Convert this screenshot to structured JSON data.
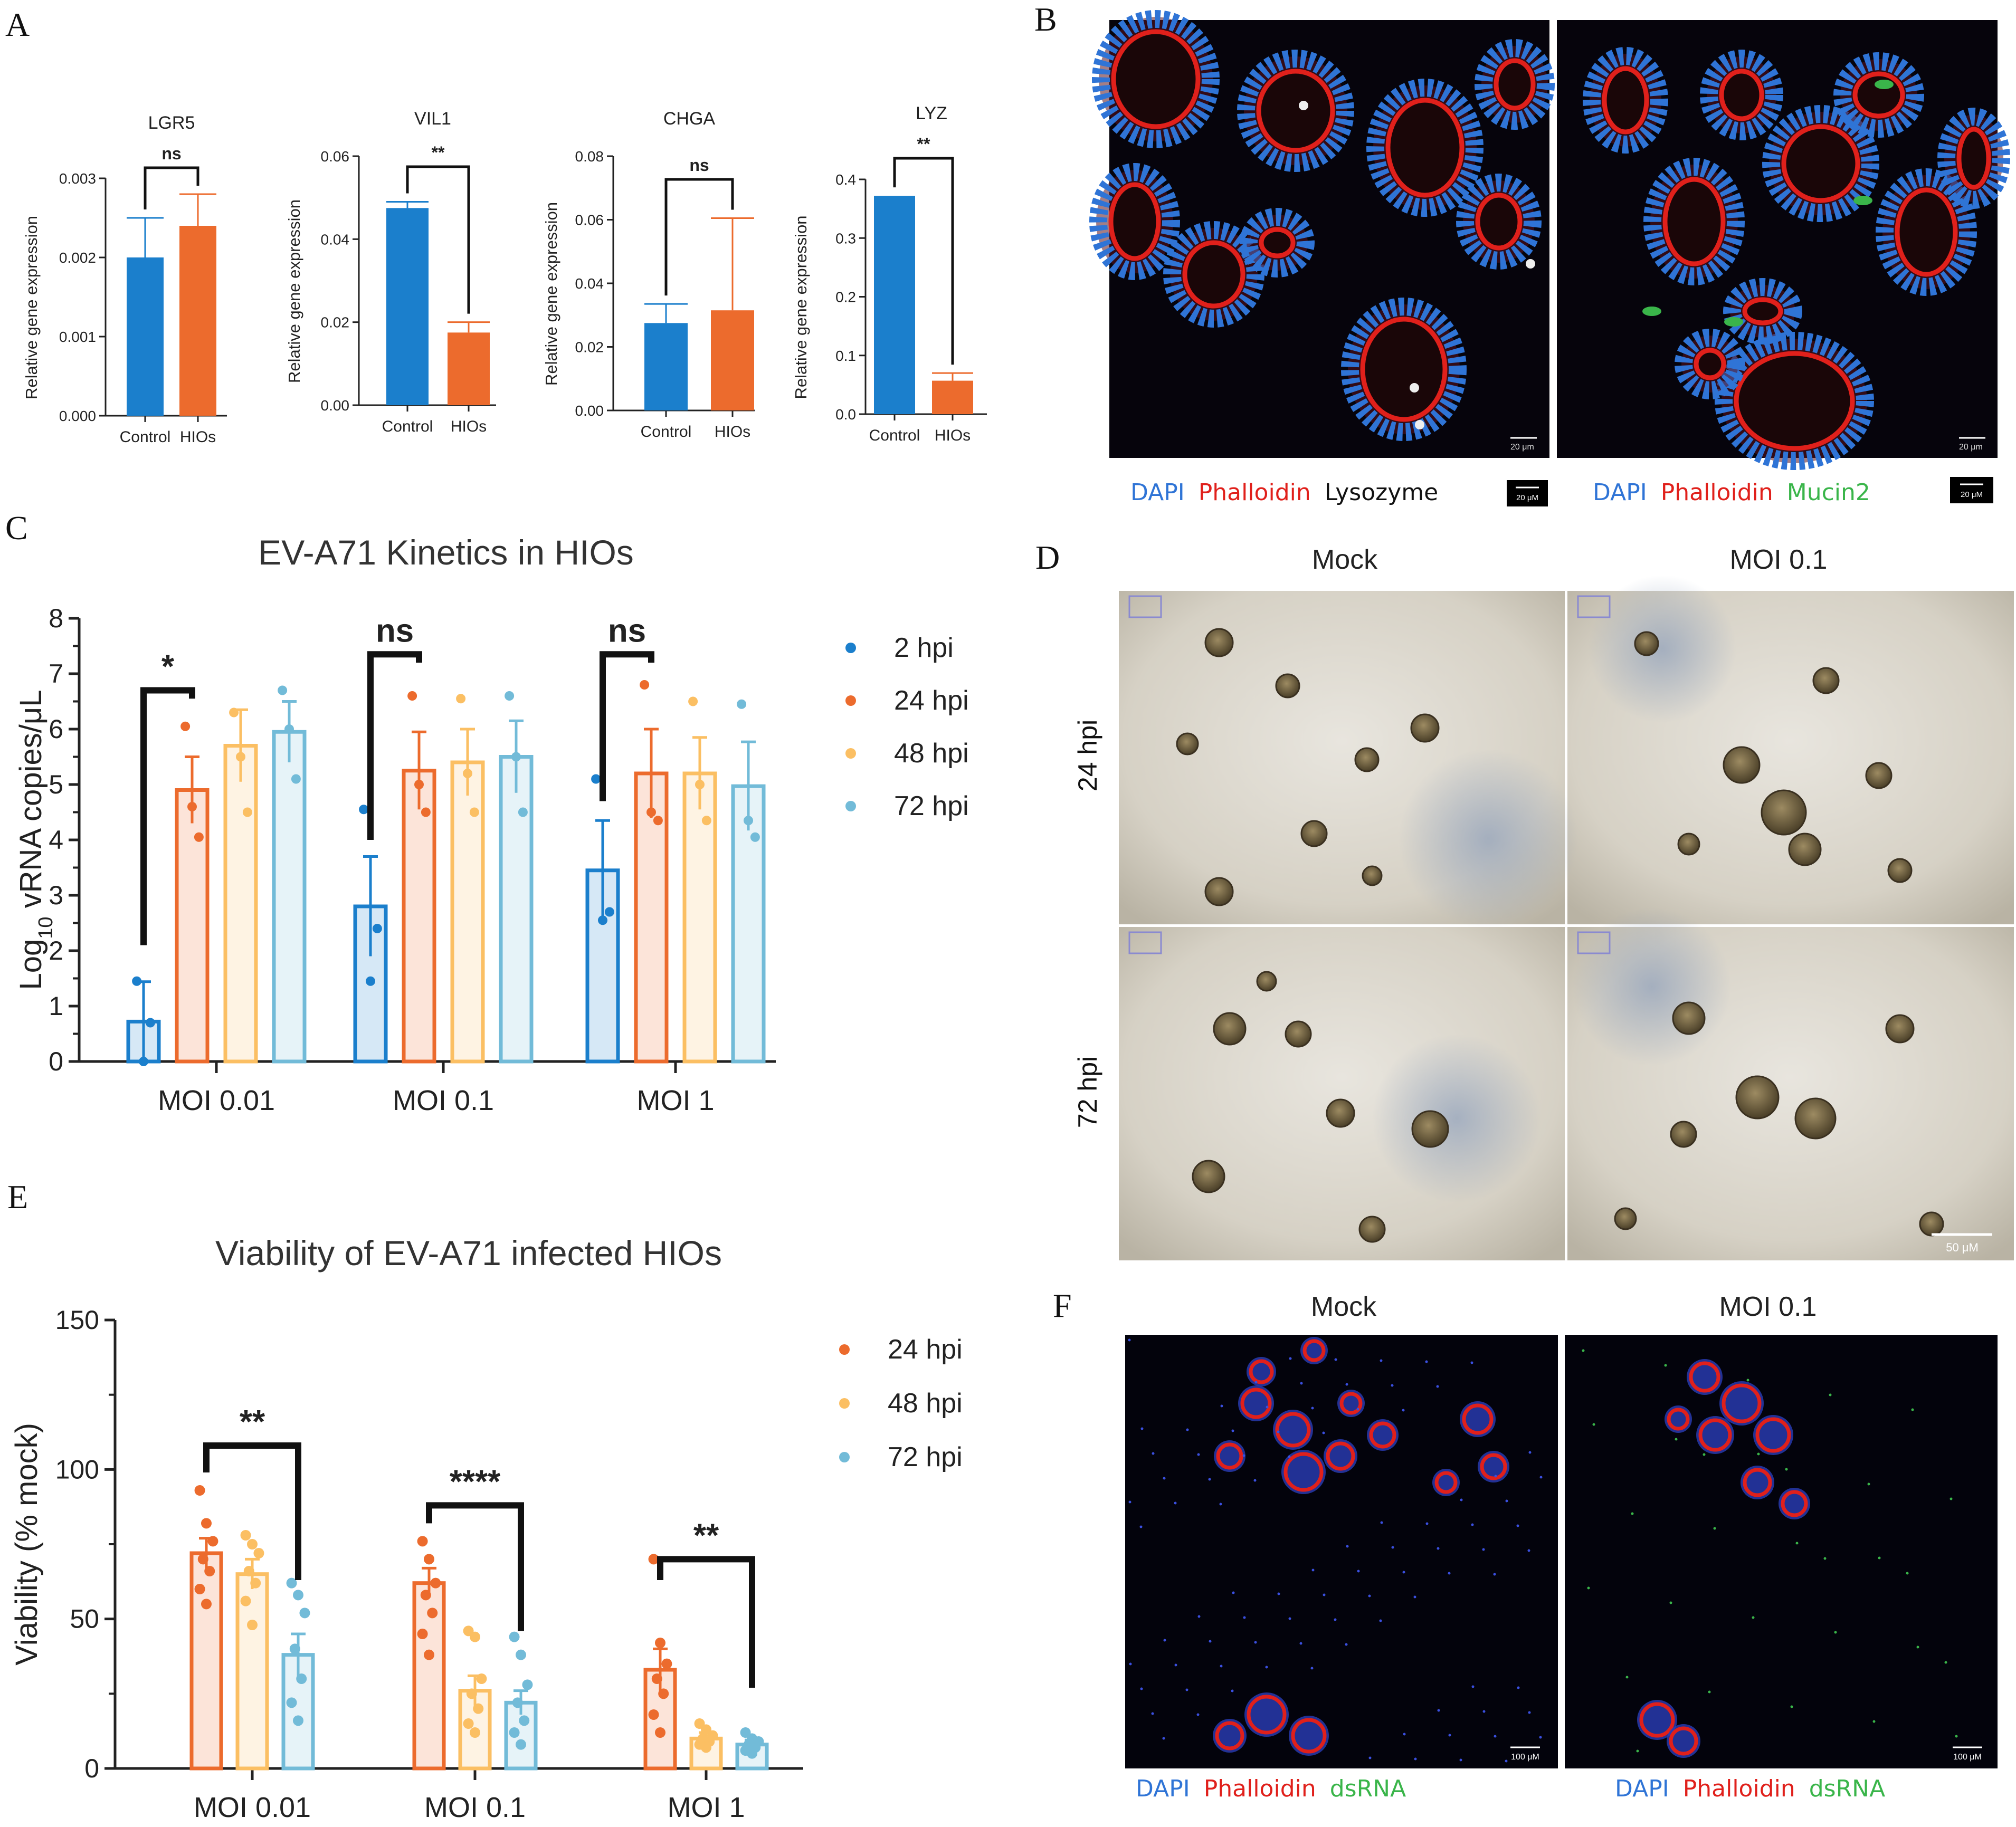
{
  "colors": {
    "blue": "#1b7fcc",
    "orange": "#ec6b2d",
    "yellow": "#fbbf63",
    "lightblue": "#72bbd8",
    "dapi": "#2f74d6",
    "phalloidin": "#e0201b",
    "green": "#3ab54a"
  },
  "panels": {
    "A": "A",
    "B": "B",
    "C": "C",
    "D": "D",
    "E": "E",
    "F": "F"
  },
  "panelB": {
    "left_caption": {
      "dapi": "DAPI",
      "phalloidin": "Phalloidin",
      "third": "Lysozyme"
    },
    "right_caption": {
      "dapi": "DAPI",
      "phalloidin": "Phalloidin",
      "third": "Mucin2"
    },
    "scale_label": "20 μM",
    "inset_scale": "20 μm"
  },
  "panelD": {
    "col_labels": [
      "Mock",
      "MOI 0.1"
    ],
    "row_labels": [
      "24 hpi",
      "72 hpi"
    ],
    "scale_label": "50 μM"
  },
  "panelF": {
    "col_labels": [
      "Mock",
      "MOI 0.1"
    ],
    "caption": {
      "dapi": "DAPI",
      "phalloidin": "Phalloidin",
      "third": "dsRNA"
    },
    "scale_label": "100 μM"
  },
  "chart_data": [
    {
      "id": "A-LGR5",
      "type": "bar",
      "title": "LGR5",
      "ylabel": "Relative gene expression",
      "categories": [
        "Control",
        "HIOs"
      ],
      "values": [
        0.002,
        0.0024
      ],
      "errors": [
        0.0005,
        0.0004
      ],
      "ylim": [
        0,
        0.003
      ],
      "yticks": [
        "0.000",
        "0.001",
        "0.002",
        "0.003"
      ],
      "significance": "ns"
    },
    {
      "id": "A-VIL1",
      "type": "bar",
      "title": "VIL1",
      "ylabel": "Relative gene expression",
      "categories": [
        "Control",
        "HIOs"
      ],
      "values": [
        0.0475,
        0.0175
      ],
      "errors": [
        0.0015,
        0.0025
      ],
      "ylim": [
        0,
        0.06
      ],
      "yticks": [
        "0.00",
        "0.02",
        "0.04",
        "0.06"
      ],
      "significance": "**"
    },
    {
      "id": "A-CHGA",
      "type": "bar",
      "title": "CHGA",
      "ylabel": "Relative gene expression",
      "categories": [
        "Control",
        "HIOs"
      ],
      "values": [
        0.0275,
        0.0315
      ],
      "errors": [
        0.006,
        0.029
      ],
      "ylim": [
        0,
        0.08
      ],
      "yticks": [
        "0.00",
        "0.02",
        "0.04",
        "0.06",
        "0.08"
      ],
      "significance": "ns"
    },
    {
      "id": "A-LYZ",
      "type": "bar",
      "title": "LYZ",
      "ylabel": "Relative gene expression",
      "categories": [
        "Control",
        "HIOs"
      ],
      "values": [
        0.372,
        0.057
      ],
      "errors": [
        0.0,
        0.013
      ],
      "ylim": [
        0,
        0.4
      ],
      "yticks": [
        "0.0",
        "0.1",
        "0.2",
        "0.3",
        "0.4"
      ],
      "significance": "**"
    },
    {
      "id": "C",
      "type": "bar",
      "title": "EV-A71 Kinetics in HIOs",
      "ylabel_main": "Log",
      "ylabel_sub": "10",
      "ylabel_rest": " vRNA copies/μL",
      "categories": [
        "MOI 0.01",
        "MOI 0.1",
        "MOI 1"
      ],
      "ylim": [
        0,
        8
      ],
      "yticks": [
        "0",
        "1",
        "2",
        "3",
        "4",
        "5",
        "6",
        "7",
        "8"
      ],
      "series": [
        {
          "name": "2 hpi",
          "values": [
            0.72,
            2.8,
            3.45
          ],
          "errors": [
            0.72,
            0.9,
            0.9
          ],
          "points": [
            [
              1.45,
              0.0,
              0.7
            ],
            [
              4.55,
              1.45,
              2.4
            ],
            [
              5.1,
              2.55,
              2.7
            ]
          ]
        },
        {
          "name": "24 hpi",
          "values": [
            4.9,
            5.25,
            5.2
          ],
          "errors": [
            0.6,
            0.7,
            0.8
          ],
          "points": [
            [
              6.05,
              4.6,
              4.05
            ],
            [
              6.6,
              5.0,
              4.5
            ],
            [
              6.8,
              4.5,
              4.35
            ]
          ]
        },
        {
          "name": "48 hpi",
          "values": [
            5.7,
            5.4,
            5.2
          ],
          "errors": [
            0.65,
            0.6,
            0.65
          ],
          "points": [
            [
              6.3,
              5.5,
              4.5
            ],
            [
              6.55,
              5.2,
              4.5
            ],
            [
              6.5,
              5.0,
              4.35
            ]
          ]
        },
        {
          "name": "72 hpi",
          "values": [
            5.95,
            5.5,
            4.97
          ],
          "errors": [
            0.55,
            0.65,
            0.8
          ],
          "points": [
            [
              6.7,
              6.0,
              5.1
            ],
            [
              6.6,
              5.5,
              4.5
            ],
            [
              6.45,
              4.35,
              4.05
            ]
          ]
        }
      ],
      "significance": [
        "*",
        "ns",
        "ns"
      ]
    },
    {
      "id": "E",
      "type": "bar",
      "title": "Viability of EV-A71 infected HIOs",
      "ylabel": "Viability (% mock)",
      "categories": [
        "MOI 0.01",
        "MOI 0.1",
        "MOI 1"
      ],
      "ylim": [
        0,
        150
      ],
      "yticks": [
        "0",
        "50",
        "100",
        "150"
      ],
      "series": [
        {
          "name": "24 hpi",
          "values": [
            72,
            62,
            33
          ],
          "errors": [
            5,
            5,
            7
          ],
          "points": [
            [
              93,
              82,
              76,
              70,
              66,
              60,
              55
            ],
            [
              76,
              70,
              62,
              58,
              52,
              45,
              38
            ],
            [
              70,
              42,
              35,
              30,
              25,
              18,
              12
            ]
          ]
        },
        {
          "name": "48 hpi",
          "values": [
            65,
            26,
            10
          ],
          "errors": [
            5,
            5,
            2
          ],
          "points": [
            [
              78,
              75,
              72,
              66,
              62,
              56,
              48
            ],
            [
              46,
              44,
              30,
              25,
              20,
              15,
              12
            ],
            [
              15,
              13,
              11,
              10,
              9,
              8,
              7
            ]
          ]
        },
        {
          "name": "72 hpi",
          "values": [
            38,
            22,
            8
          ],
          "errors": [
            7,
            4,
            1.5
          ],
          "points": [
            [
              62,
              58,
              52,
              40,
              30,
              22,
              16
            ],
            [
              44,
              38,
              28,
              22,
              16,
              12,
              8
            ],
            [
              12,
              10,
              9,
              8,
              7,
              6,
              5
            ]
          ]
        }
      ],
      "significance": [
        "**",
        "****",
        "**"
      ]
    }
  ]
}
